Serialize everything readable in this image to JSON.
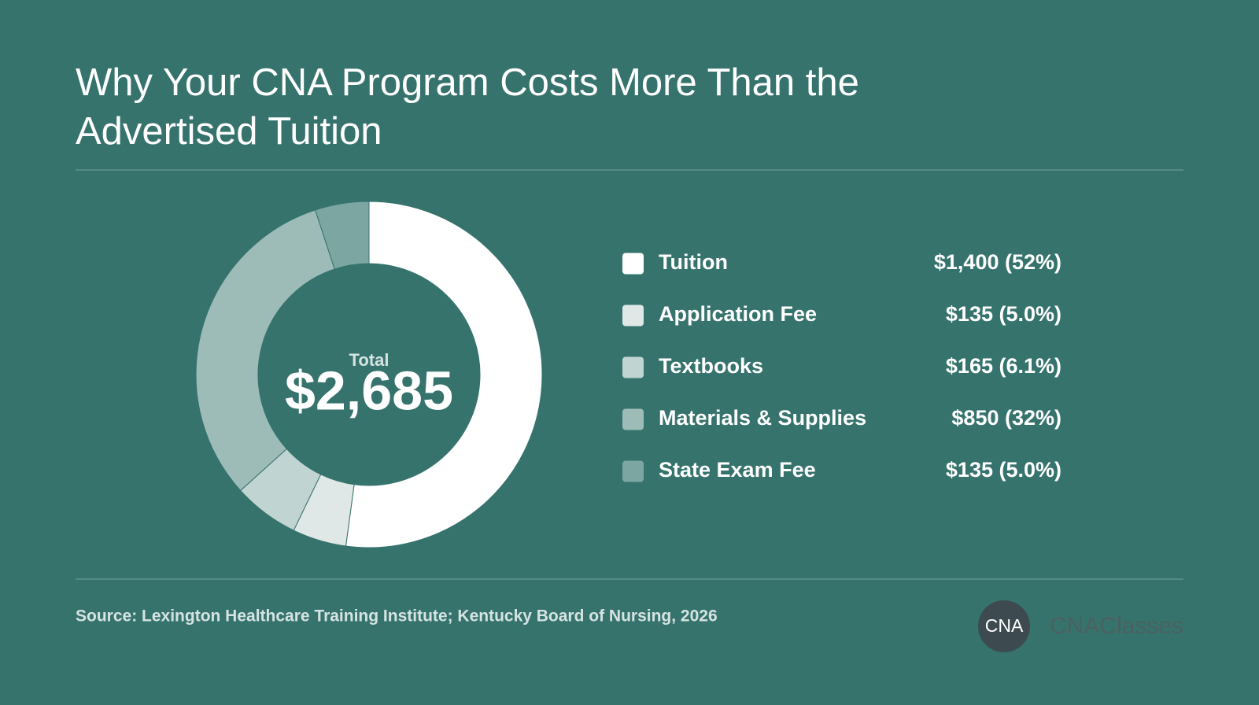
{
  "chart_data": {
    "type": "donut",
    "title": "Why Your CNA Program Costs More Than the Advertised Tuition",
    "categories": [
      "Tuition",
      "Application Fee",
      "Textbooks",
      "Materials & Supplies",
      "State Exam Fee"
    ],
    "values": [
      1400,
      135,
      165,
      850,
      135
    ],
    "value_labels": [
      "$1,400 (52%)",
      "$135 (5.0%)",
      "$165 (6.1%)",
      "$850 (32%)",
      "$135 (5.0%)"
    ],
    "colors": [
      "#ffffff",
      "#dfe8e6",
      "#c0d4d1",
      "#9dbcb8",
      "#7ba6a1"
    ],
    "center_label": "Total",
    "center_value": "$2,685",
    "source": "Source: Lexington Healthcare Training Institute; Kentucky Board of Nursing, 2026"
  },
  "branding": {
    "logo_text": "CNA",
    "name": "CNAClasses"
  }
}
